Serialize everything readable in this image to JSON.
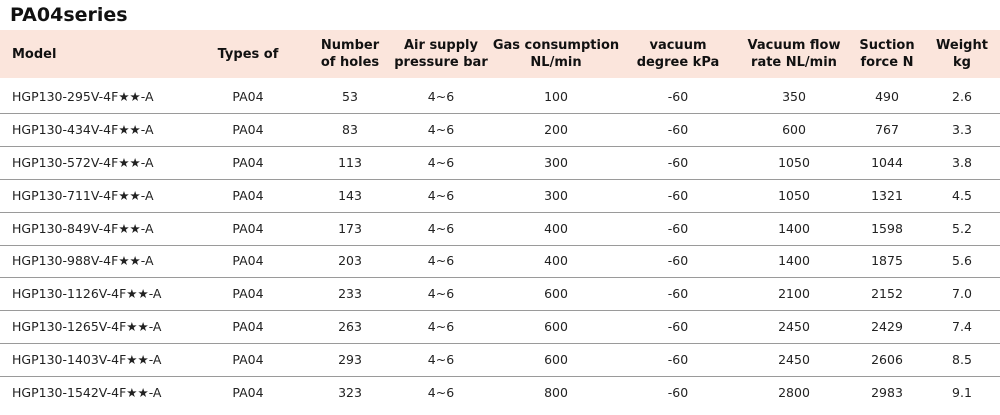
{
  "title": "PA04series",
  "table": {
    "header": [
      "Model",
      "Types of",
      "Number\nof holes",
      "Air supply\npressure bar",
      "Gas consumption\nNL/min",
      "vacuum\ndegree kPa",
      "Vacuum flow\nrate NL/min",
      "Suction\nforce N",
      "Weight\nkg"
    ],
    "rows": [
      [
        "HGP130-295V-4F★★-A",
        "PA04",
        "53",
        "4~6",
        "100",
        "-60",
        "350",
        "490",
        "2.6"
      ],
      [
        "HGP130-434V-4F★★-A",
        "PA04",
        "83",
        "4~6",
        "200",
        "-60",
        "600",
        "767",
        "3.3"
      ],
      [
        "HGP130-572V-4F★★-A",
        "PA04",
        "113",
        "4~6",
        "300",
        "-60",
        "1050",
        "1044",
        "3.8"
      ],
      [
        "HGP130-711V-4F★★-A",
        "PA04",
        "143",
        "4~6",
        "300",
        "-60",
        "1050",
        "1321",
        "4.5"
      ],
      [
        "HGP130-849V-4F★★-A",
        "PA04",
        "173",
        "4~6",
        "400",
        "-60",
        "1400",
        "1598",
        "5.2"
      ],
      [
        "HGP130-988V-4F★★-A",
        "PA04",
        "203",
        "4~6",
        "400",
        "-60",
        "1400",
        "1875",
        "5.6"
      ],
      [
        "HGP130-1126V-4F★★-A",
        "PA04",
        "233",
        "4~6",
        "600",
        "-60",
        "2100",
        "2152",
        "7.0"
      ],
      [
        "HGP130-1265V-4F★★-A",
        "PA04",
        "263",
        "4~6",
        "600",
        "-60",
        "2450",
        "2429",
        "7.4"
      ],
      [
        "HGP130-1403V-4F★★-A",
        "PA04",
        "293",
        "4~6",
        "600",
        "-60",
        "2450",
        "2606",
        "8.5"
      ],
      [
        "HGP130-1542V-4F★★-A",
        "PA04",
        "323",
        "4~6",
        "800",
        "-60",
        "2800",
        "2983",
        "9.1"
      ]
    ]
  }
}
